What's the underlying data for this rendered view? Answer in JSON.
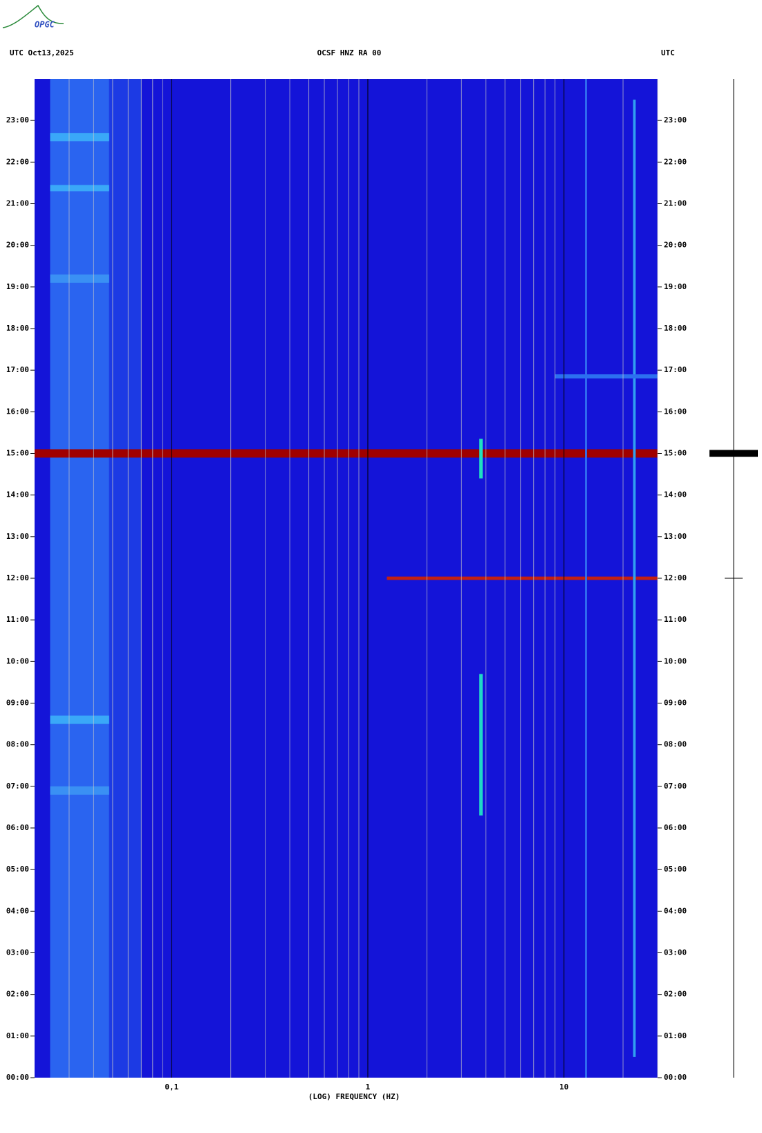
{
  "logo": "OPGC",
  "chart_data": {
    "type": "spectrogram",
    "title_left": "UTC  Oct13,2025",
    "title": "OCSF HNZ RA 00",
    "title_right": "UTC",
    "xlabel": "(LOG) FREQUENCY (HZ)",
    "xlog": true,
    "xlim": [
      0.02,
      30
    ],
    "xticks": [
      {
        "value": 0.1,
        "label": "0,1"
      },
      1,
      10
    ],
    "xminor": [
      0.03,
      0.04,
      0.05,
      0.06,
      0.07,
      0.08,
      0.09,
      0.2,
      0.3,
      0.4,
      0.5,
      0.6,
      0.7,
      0.8,
      0.9,
      2,
      3,
      4,
      5,
      6,
      7,
      8,
      9,
      20,
      30
    ],
    "ylim": [
      0,
      24
    ],
    "yticks": [
      {
        "value": 0,
        "label": "00:00"
      },
      {
        "value": 1,
        "label": "01:00"
      },
      {
        "value": 2,
        "label": "02:00"
      },
      {
        "value": 3,
        "label": "03:00"
      },
      {
        "value": 4,
        "label": "04:00"
      },
      {
        "value": 5,
        "label": "05:00"
      },
      {
        "value": 6,
        "label": "06:00"
      },
      {
        "value": 7,
        "label": "07:00"
      },
      {
        "value": 8,
        "label": "08:00"
      },
      {
        "value": 9,
        "label": "09:00"
      },
      {
        "value": 10,
        "label": "10:00"
      },
      {
        "value": 11,
        "label": "11:00"
      },
      {
        "value": 12,
        "label": "12:00"
      },
      {
        "value": 13,
        "label": "13:00"
      },
      {
        "value": 14,
        "label": "14:00"
      },
      {
        "value": 15,
        "label": "15:00"
      },
      {
        "value": 16,
        "label": "16:00"
      },
      {
        "value": 17,
        "label": "17:00"
      },
      {
        "value": 18,
        "label": "18:00"
      },
      {
        "value": 19,
        "label": "19:00"
      },
      {
        "value": 20,
        "label": "20:00"
      },
      {
        "value": 21,
        "label": "21:00"
      },
      {
        "value": 22,
        "label": "22:00"
      },
      {
        "value": 23,
        "label": "23:00"
      }
    ],
    "background": "#1414d8",
    "features": [
      {
        "fmin": 0.024,
        "fmax": 0.048,
        "tmin": 0,
        "tmax": 24,
        "color": "#2a64f0"
      },
      {
        "fmin": 0.048,
        "fmax": 0.07,
        "tmin": 0,
        "tmax": 24,
        "color": "#1c3ae4"
      },
      {
        "fmin": 0.024,
        "fmax": 0.048,
        "tmin": 22.5,
        "tmax": 22.7,
        "color": "#3aa8f8"
      },
      {
        "fmin": 0.024,
        "fmax": 0.048,
        "tmin": 21.3,
        "tmax": 21.45,
        "color": "#3aa8f8"
      },
      {
        "fmin": 0.024,
        "fmax": 0.048,
        "tmin": 19.1,
        "tmax": 19.3,
        "color": "#3a90f4"
      },
      {
        "fmin": 0.024,
        "fmax": 0.048,
        "tmin": 8.5,
        "tmax": 8.7,
        "color": "#3aa8f8"
      },
      {
        "fmin": 0.024,
        "fmax": 0.048,
        "tmin": 6.8,
        "tmax": 7.0,
        "color": "#3a90f4"
      },
      {
        "fmin": 0.02,
        "fmax": 30,
        "tmin": 14.9,
        "tmax": 15.1,
        "color": "#a00000"
      },
      {
        "fmin": 1.25,
        "fmax": 30,
        "tmin": 11.96,
        "tmax": 12.04,
        "color": "#c42010"
      },
      {
        "fmin": 3.7,
        "fmax": 3.85,
        "tmin": 14.4,
        "tmax": 15.35,
        "color": "#20e0c0"
      },
      {
        "fmin": 3.7,
        "fmax": 3.85,
        "tmin": 6.3,
        "tmax": 9.7,
        "color": "#20d8c8"
      },
      {
        "fmin": 22.5,
        "fmax": 23.2,
        "tmin": 0.5,
        "tmax": 23.5,
        "color": "#30a0f0"
      },
      {
        "fmin": 12.8,
        "fmax": 13.1,
        "tmin": 0,
        "tmax": 24,
        "color": "#3070f0"
      },
      {
        "fmin": 9,
        "fmax": 30,
        "tmin": 16.8,
        "tmax": 16.9,
        "color": "#2c70f0"
      }
    ],
    "trace": [
      {
        "time": 15,
        "width": 70
      },
      {
        "time": 12,
        "width": 26
      }
    ]
  }
}
